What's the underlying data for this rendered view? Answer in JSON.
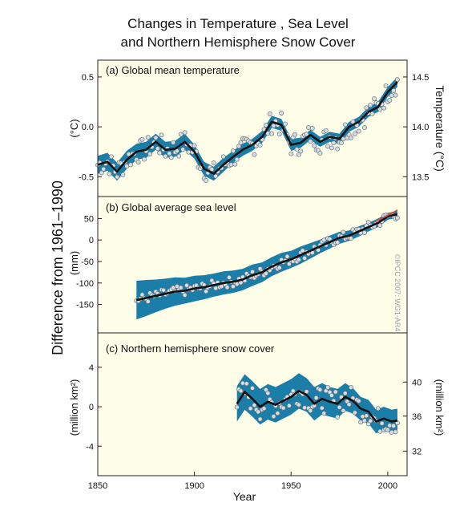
{
  "title_line1": "Changes in Temperature , Sea Level",
  "title_line2": "and Northern Hemisphere Snow Cover",
  "shared_ylabel": "Difference from 1961–1990",
  "xlabel": "Year",
  "copyright": "©IPCC 2007: WG1-AR4",
  "colors": {
    "background": "#fdfde8",
    "band": "#1a7ea8",
    "line": "#111111",
    "dot_fill": "#d8dde2",
    "dot_stroke": "#6b7680",
    "red": "#e0473a"
  },
  "chart_data": [
    {
      "type": "line",
      "label": "(a) Global mean temperature",
      "ylabel_left": "(°C)",
      "ylabel_right": "Temperature (°C)",
      "xlim": [
        1850,
        2010
      ],
      "ylim": [
        -0.65,
        0.62
      ],
      "left_ticks": [
        "0.5",
        "0.0",
        "-0.5"
      ],
      "left_tick_values": [
        0.5,
        0.0,
        -0.5
      ],
      "right_ticks": [
        "14.5",
        "14.0",
        "13.5"
      ],
      "right_tick_values": [
        0.5,
        0.0,
        -0.5
      ],
      "x": [
        1850,
        1855,
        1860,
        1865,
        1870,
        1875,
        1880,
        1885,
        1890,
        1895,
        1900,
        1905,
        1910,
        1915,
        1920,
        1925,
        1930,
        1935,
        1940,
        1945,
        1950,
        1955,
        1960,
        1965,
        1970,
        1975,
        1980,
        1985,
        1990,
        1995,
        2000,
        2005
      ],
      "y": [
        -0.38,
        -0.35,
        -0.45,
        -0.33,
        -0.25,
        -0.23,
        -0.15,
        -0.23,
        -0.22,
        -0.15,
        -0.25,
        -0.42,
        -0.47,
        -0.38,
        -0.3,
        -0.23,
        -0.18,
        -0.1,
        0.05,
        0.02,
        -0.18,
        -0.16,
        -0.08,
        -0.15,
        -0.1,
        -0.12,
        0.0,
        0.05,
        0.15,
        0.2,
        0.35,
        0.45
      ],
      "band": [
        0.09,
        0.09,
        0.09,
        0.09,
        0.08,
        0.08,
        0.08,
        0.08,
        0.08,
        0.08,
        0.07,
        0.07,
        0.07,
        0.07,
        0.06,
        0.06,
        0.06,
        0.06,
        0.06,
        0.06,
        0.06,
        0.05,
        0.05,
        0.05,
        0.05,
        0.05,
        0.05,
        0.05,
        0.05,
        0.05,
        0.05,
        0.05
      ],
      "annual_noise": 0.12
    },
    {
      "type": "line",
      "label": "(b) Global average sea level",
      "ylabel_left": "(mm)",
      "xlim": [
        1850,
        2010
      ],
      "ylim": [
        -205,
        90
      ],
      "left_ticks": [
        "50",
        "0",
        "-50",
        "-100",
        "-150"
      ],
      "left_tick_values": [
        50,
        0,
        -50,
        -100,
        -150
      ],
      "x": [
        1870,
        1875,
        1880,
        1885,
        1890,
        1895,
        1900,
        1905,
        1910,
        1915,
        1920,
        1925,
        1930,
        1935,
        1940,
        1945,
        1950,
        1955,
        1960,
        1965,
        1970,
        1975,
        1980,
        1985,
        1990,
        1995,
        2000,
        2005
      ],
      "y": [
        -140,
        -135,
        -130,
        -125,
        -120,
        -118,
        -113,
        -110,
        -105,
        -100,
        -97,
        -92,
        -82,
        -75,
        -62,
        -52,
        -45,
        -35,
        -25,
        -15,
        -5,
        5,
        10,
        20,
        30,
        40,
        55,
        60
      ],
      "band": [
        45,
        42,
        38,
        35,
        33,
        30,
        30,
        28,
        27,
        27,
        26,
        25,
        25,
        23,
        22,
        22,
        20,
        20,
        18,
        16,
        15,
        14,
        12,
        12,
        10,
        10,
        8,
        8
      ],
      "satellite_x": [
        1993,
        1996,
        1999,
        2002,
        2005
      ],
      "satellite_y": [
        42,
        48,
        55,
        62,
        70
      ],
      "annual_noise": 12
    },
    {
      "type": "line",
      "label": "(c) Northern hemisphere snow cover",
      "ylabel_left": "(million km²)",
      "ylabel_right": "(million km²)",
      "xlim": [
        1850,
        2010
      ],
      "ylim": [
        -6.5,
        7
      ],
      "left_ticks": [
        "4",
        "0",
        "-4"
      ],
      "left_tick_values": [
        4,
        0,
        -4
      ],
      "right_ticks": [
        "40",
        "36",
        "32"
      ],
      "right_tick_values": [
        2.5,
        -0.95,
        -4.5
      ],
      "x": [
        1922,
        1926,
        1930,
        1934,
        1938,
        1942,
        1946,
        1950,
        1954,
        1958,
        1962,
        1966,
        1970,
        1974,
        1978,
        1982,
        1986,
        1990,
        1994,
        1998,
        2002,
        2005
      ],
      "y": [
        0.3,
        1.5,
        0.8,
        0.0,
        0.5,
        0.2,
        0.6,
        1.0,
        1.6,
        1.2,
        0.3,
        0.8,
        0.5,
        0.3,
        1.0,
        0.6,
        -0.2,
        -0.5,
        -1.5,
        -1.2,
        -1.5,
        -1.4
      ],
      "band": [
        1.8,
        1.8,
        1.8,
        1.8,
        1.8,
        1.8,
        1.8,
        1.8,
        1.8,
        1.7,
        1.7,
        1.6,
        1.5,
        1.5,
        1.4,
        1.3,
        1.2,
        1.2,
        1.2,
        1.2,
        1.2,
        1.2
      ],
      "annual_noise": 1.4
    }
  ],
  "x_ticks": [
    "1850",
    "1900",
    "1950",
    "2000"
  ],
  "x_tick_values": [
    1850,
    1900,
    1950,
    2000
  ]
}
